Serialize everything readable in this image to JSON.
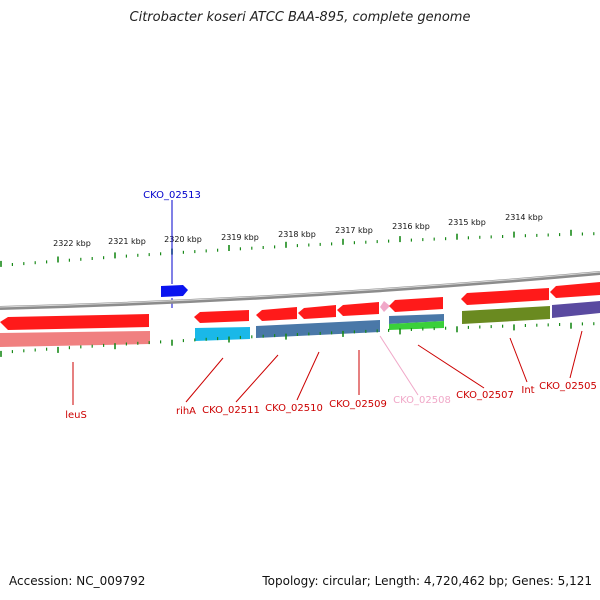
{
  "title": "Citrobacter koseri ATCC BAA-895, complete genome",
  "footer": {
    "accession": "Accession: NC_009792",
    "summary": "Topology: circular; Length: 4,720,462 bp; Genes: 5,121"
  },
  "scale_labels": [
    "2322 kbp",
    "2321 kbp",
    "2320 kbp",
    "2319 kbp",
    "2318 kbp",
    "2317 kbp",
    "2316 kbp",
    "2315 kbp",
    "2314 kbp"
  ],
  "gene_labels": [
    {
      "text": "CKO_02513",
      "color": "#0000cc"
    },
    {
      "text": "leuS",
      "color": "#cc0000"
    },
    {
      "text": "rihA",
      "color": "#cc0000"
    },
    {
      "text": "CKO_02511",
      "color": "#cc0000"
    },
    {
      "text": "CKO_02510",
      "color": "#cc0000"
    },
    {
      "text": "CKO_02509",
      "color": "#cc0000"
    },
    {
      "text": "CKO_02508",
      "color": "#f0a8c8"
    },
    {
      "text": "CKO_02507",
      "color": "#cc0000"
    },
    {
      "text": "Int",
      "color": "#cc0000"
    },
    {
      "text": "CKO_02505",
      "color": "#cc0000"
    }
  ],
  "colors": {
    "cds": "#ff1a1a",
    "backbone": "#8c8c8c",
    "ticks": "#1a8a1a",
    "leader_red": "#cc0000",
    "leader_blue": "#0000cc",
    "leader_pink": "#f0a8c8",
    "forward_gene": "#0a14f0",
    "cog_cyan": "#1ab8e8",
    "cog_steel": "#4a78a8",
    "cog_green": "#3ad03a",
    "cog_olive": "#6a8a20",
    "cog_purple": "#5a4aa0",
    "cog_salmon": "#f08080"
  }
}
